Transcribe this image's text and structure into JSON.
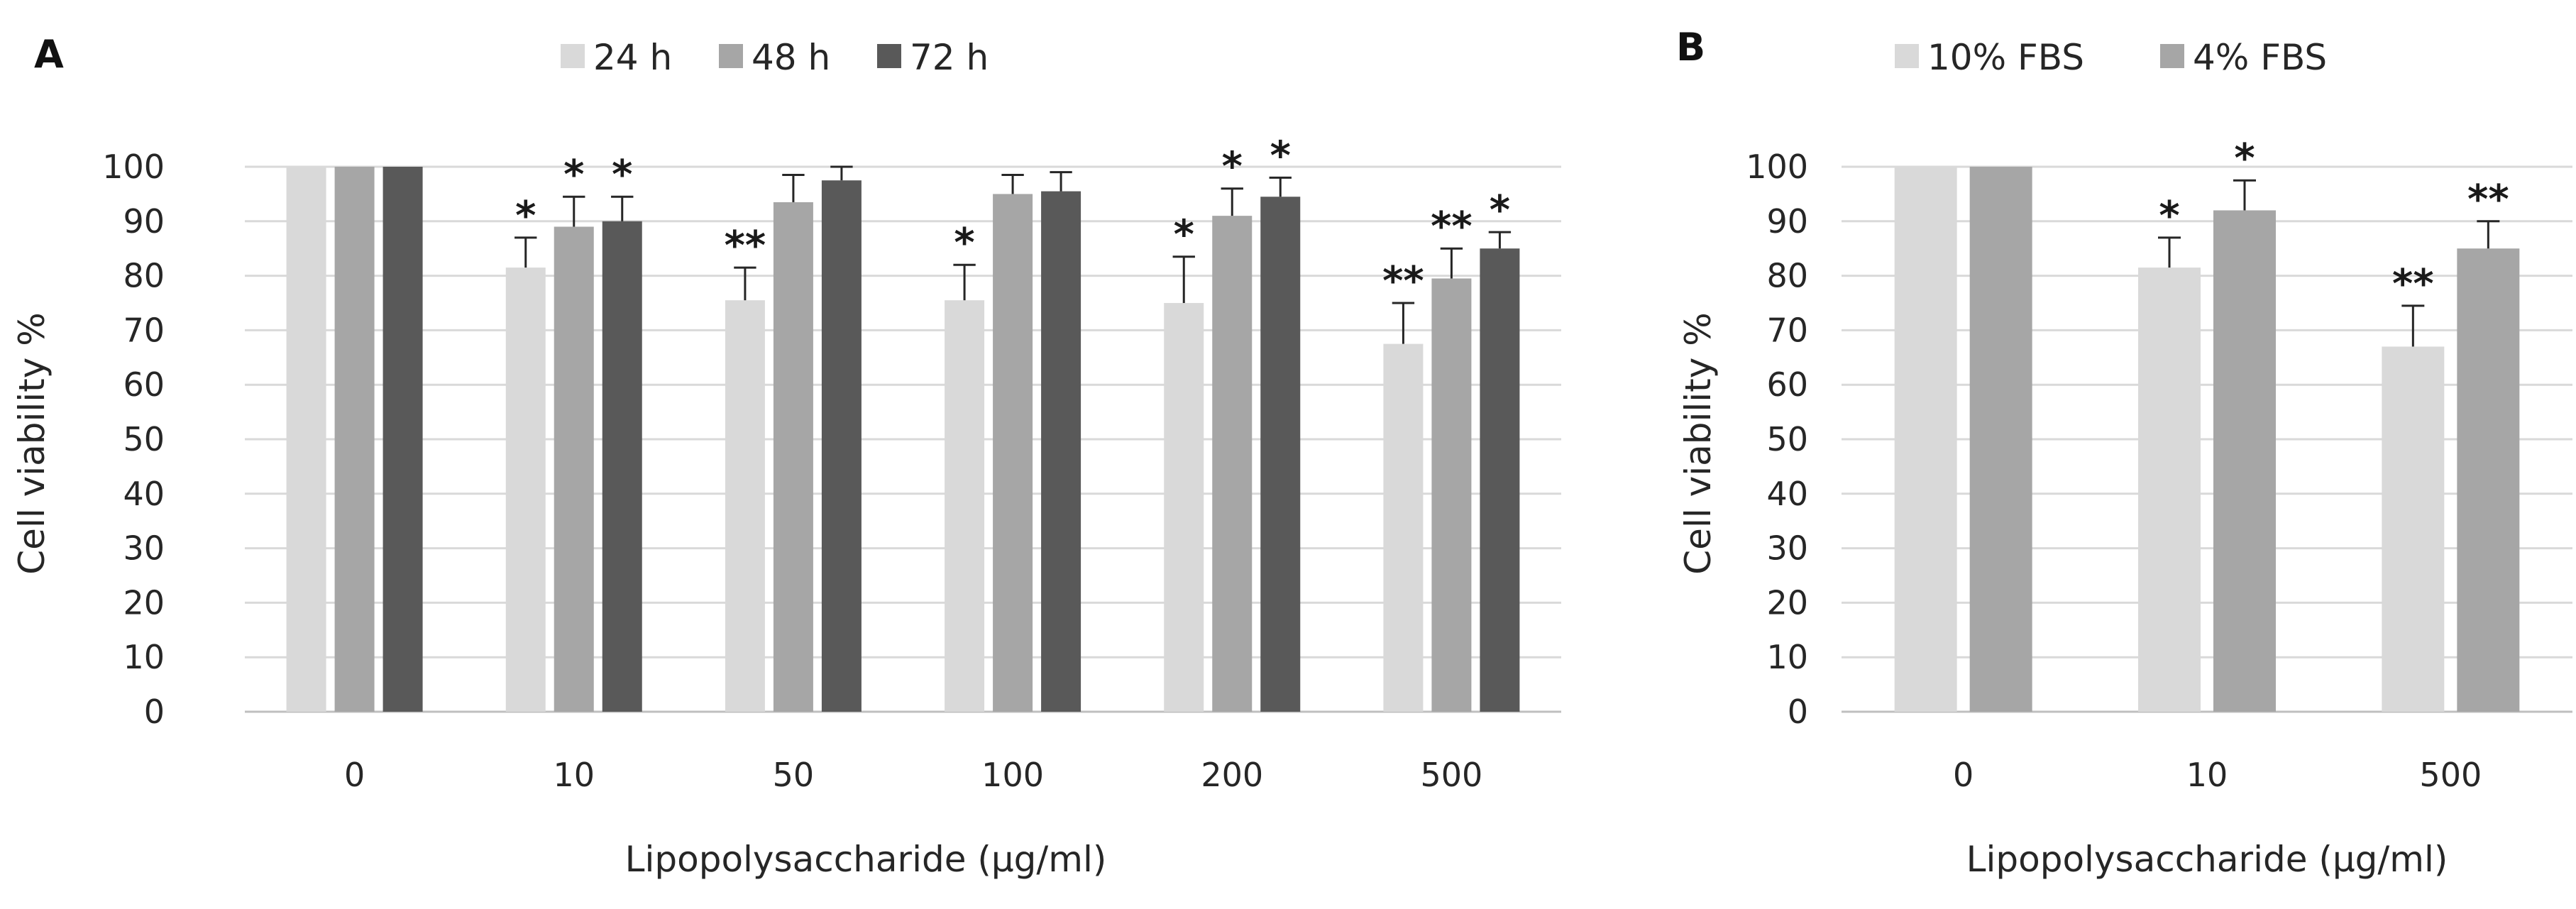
{
  "chart_data": [
    {
      "panel": "A",
      "type": "bar",
      "title": "",
      "xlabel": "Lipopolysaccharide (μg/ml)",
      "ylabel": "Cell viability %",
      "ylim": [
        0,
        100
      ],
      "yticks": [
        0,
        10,
        20,
        30,
        40,
        50,
        60,
        70,
        80,
        90,
        100
      ],
      "grid": true,
      "legend_position": "top",
      "categories": [
        "0",
        "10",
        "50",
        "100",
        "200",
        "500"
      ],
      "series": [
        {
          "name": "24 h",
          "color": "#d9d9d9",
          "values": [
            100,
            81.5,
            75.5,
            75.5,
            75,
            67.5
          ],
          "errors": [
            0,
            5.5,
            6,
            6.5,
            8.5,
            7.5
          ],
          "significance": [
            "",
            "*",
            "**",
            "*",
            "*",
            "**"
          ]
        },
        {
          "name": "48 h",
          "color": "#a6a6a6",
          "values": [
            100,
            89,
            93.5,
            95,
            91,
            79.5
          ],
          "errors": [
            0,
            5.5,
            5,
            3.5,
            5,
            5.5
          ],
          "significance": [
            "",
            "*",
            "",
            "",
            "*",
            "**"
          ]
        },
        {
          "name": "72 h",
          "color": "#595959",
          "values": [
            100,
            90,
            97.5,
            95.5,
            94.5,
            85
          ],
          "errors": [
            0,
            4.5,
            2.5,
            3.5,
            3.5,
            3
          ],
          "significance": [
            "",
            "*",
            "",
            "",
            "*",
            "*"
          ]
        }
      ]
    },
    {
      "panel": "B",
      "type": "bar",
      "title": "",
      "xlabel": "Lipopolysaccharide (μg/ml)",
      "ylabel": "Cell viability %",
      "ylim": [
        0,
        100
      ],
      "yticks": [
        0,
        10,
        20,
        30,
        40,
        50,
        60,
        70,
        80,
        90,
        100
      ],
      "grid": true,
      "legend_position": "top",
      "categories": [
        "0",
        "10",
        "500"
      ],
      "series": [
        {
          "name": "10% FBS",
          "color": "#d9d9d9",
          "values": [
            100,
            81.5,
            67
          ],
          "errors": [
            0,
            5.5,
            7.5
          ],
          "significance": [
            "",
            "*",
            "**"
          ]
        },
        {
          "name": "4% FBS",
          "color": "#a6a6a6",
          "values": [
            100,
            92,
            85
          ],
          "errors": [
            0,
            5.5,
            5
          ],
          "significance": [
            "",
            "*",
            "**"
          ]
        }
      ]
    }
  ]
}
